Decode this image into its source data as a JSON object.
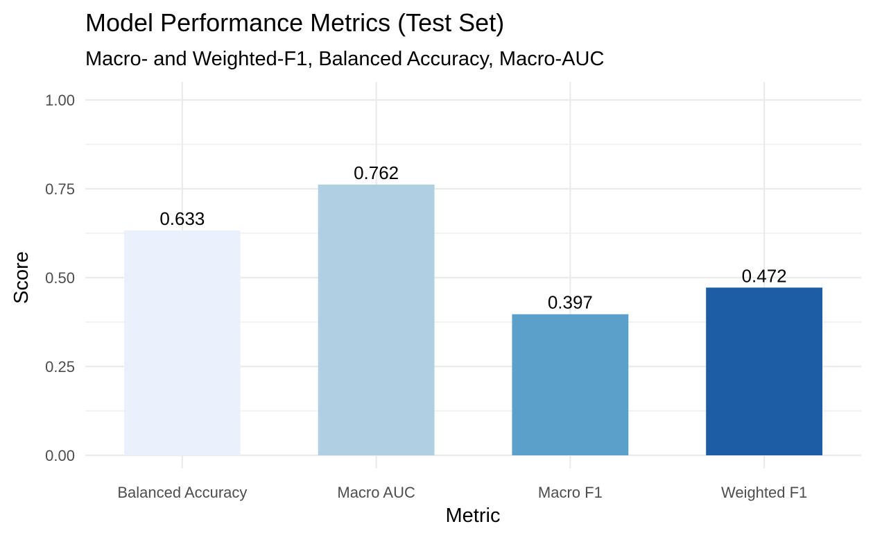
{
  "chart_data": {
    "type": "bar",
    "title": "Model Performance Metrics (Test Set)",
    "subtitle": "Macro- and Weighted-F1, Balanced Accuracy, Macro-AUC",
    "xlabel": "Metric",
    "ylabel": "Score",
    "categories": [
      "Balanced Accuracy",
      "Macro AUC",
      "Macro F1",
      "Weighted F1"
    ],
    "values": [
      0.633,
      0.762,
      0.397,
      0.472
    ],
    "data_labels": [
      "0.633",
      "0.762",
      "0.397",
      "0.472"
    ],
    "colors": [
      "#eaf1fc",
      "#b0cfe3",
      "#5b9fcb",
      "#1d5da6"
    ],
    "ylim": [
      0,
      1
    ],
    "yticks": [
      0,
      0.25,
      0.5,
      0.75,
      1
    ],
    "ytick_labels": [
      "0.00",
      "0.25",
      "0.50",
      "0.75",
      "1.00"
    ],
    "grid": true,
    "legend": "none"
  }
}
